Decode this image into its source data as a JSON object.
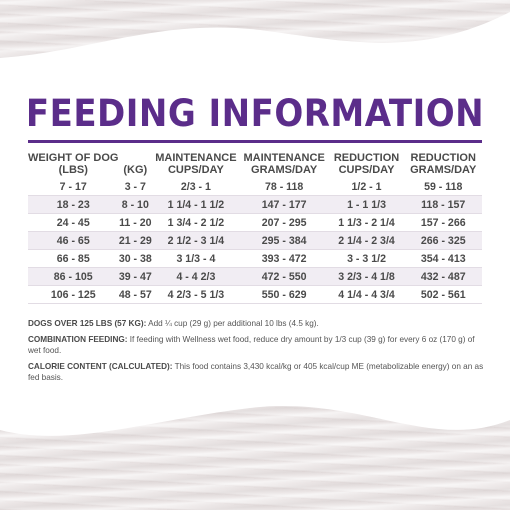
{
  "title": "FEEDING INFORMATION",
  "colors": {
    "accent": "#5b2d8a",
    "text": "#4a4a4a",
    "row_alt": "#f1edf3"
  },
  "table": {
    "headers": [
      [
        "WEIGHT OF DOG",
        "(LBS)"
      ],
      [
        "",
        "(KG)"
      ],
      [
        "MAINTENANCE",
        "CUPS/DAY"
      ],
      [
        "MAINTENANCE",
        "GRAMS/DAY"
      ],
      [
        "REDUCTION",
        "CUPS/DAY"
      ],
      [
        "REDUCTION",
        "GRAMS/DAY"
      ]
    ],
    "rows": [
      [
        "7 - 17",
        "3 - 7",
        "2/3 - 1",
        "78 - 118",
        "1/2 - 1",
        "59 - 118"
      ],
      [
        "18 - 23",
        "8 - 10",
        "1 1/4 - 1 1/2",
        "147 - 177",
        "1 - 1 1/3",
        "118 - 157"
      ],
      [
        "24 - 45",
        "11 - 20",
        "1 3/4 - 2 1/2",
        "207 - 295",
        "1 1/3 - 2 1/4",
        "157 - 266"
      ],
      [
        "46 - 65",
        "21 - 29",
        "2 1/2 - 3 1/4",
        "295 - 384",
        "2 1/4 - 2 3/4",
        "266 - 325"
      ],
      [
        "66 - 85",
        "30 - 38",
        "3 1/3 - 4",
        "393 - 472",
        "3 - 3 1/2",
        "354 - 413"
      ],
      [
        "86 - 105",
        "39 - 47",
        "4 - 4 2/3",
        "472 - 550",
        "3 2/3 - 4 1/8",
        "432 - 487"
      ],
      [
        "106 - 125",
        "48 - 57",
        "4 2/3 - 5 1/3",
        "550 - 629",
        "4 1/4 - 4 3/4",
        "502 - 561"
      ]
    ]
  },
  "notes": [
    {
      "label": "DOGS OVER 125 LBS (57 KG):",
      "text": " Add ¼ cup (29 g) per additional 10 lbs (4.5 kg)."
    },
    {
      "label": "COMBINATION FEEDING:",
      "text": " If feeding with Wellness wet food, reduce dry amount by 1/3 cup (39 g) for every 6 oz (170 g) of wet food."
    },
    {
      "label": "CALORIE CONTENT (CALCULATED):",
      "text": " This food contains 3,430 kcal/kg or 405 kcal/cup ME (metabolizable energy) on an as fed basis."
    }
  ]
}
